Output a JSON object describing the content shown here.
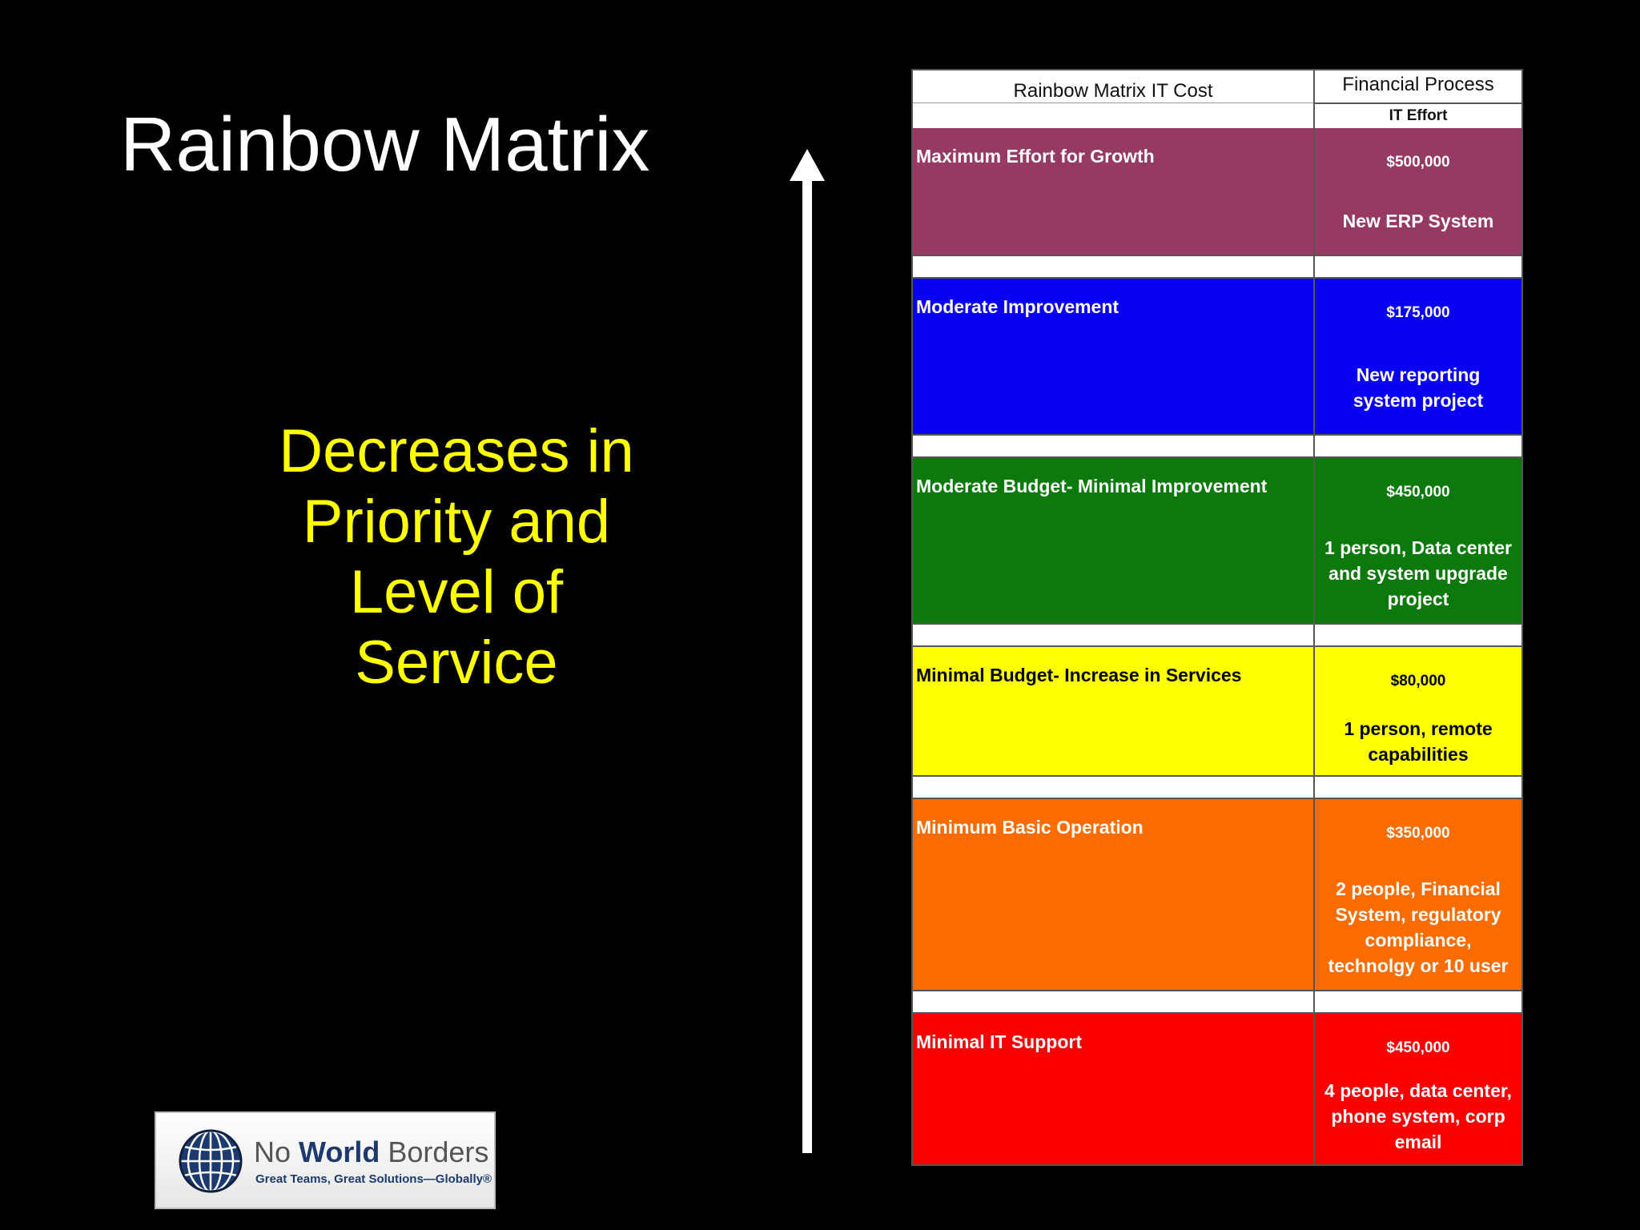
{
  "slide": {
    "title": "Rainbow Matrix",
    "caption_lines": [
      "Decreases in",
      "Priority and",
      "Level of",
      "Service"
    ]
  },
  "matrix": {
    "header": {
      "col1": "Rainbow Matrix IT Cost",
      "col2_top": "Financial Process",
      "col2_sub": "IT Effort"
    },
    "rows": [
      {
        "label": "Maximum Effort for Growth",
        "amount": "$500,000",
        "desc": [
          "New ERP System"
        ],
        "color": "#963963"
      },
      {
        "label": "Moderate Improvement",
        "amount": "$175,000",
        "desc": [
          "New reporting",
          "system project"
        ],
        "color": "#0a00f2"
      },
      {
        "label": "Moderate Budget- Minimal Improvement",
        "amount": "$450,000",
        "desc": [
          "1 person, Data center",
          "and system upgrade",
          "project"
        ],
        "color": "#0b790b"
      },
      {
        "label": "Minimal Budget- Increase in Services",
        "amount": "$80,000",
        "desc": [
          "1 person, remote",
          "capabilities"
        ],
        "color": "#ffff00"
      },
      {
        "label": "Minimum Basic Operation",
        "amount": "$350,000",
        "desc": [
          "2 people, Financial",
          "System, regulatory",
          "compliance,",
          "technolgy or 10 user"
        ],
        "color": "#fa6c00"
      },
      {
        "label": "Minimal IT Support",
        "amount": "$450,000",
        "desc": [
          "4 people, data center,",
          "phone system, corp",
          "email"
        ],
        "color": "#fa0000"
      }
    ]
  },
  "logo": {
    "name_pre": "No ",
    "name_bold": "World",
    "name_post": " Borders",
    "tagline": "Great Teams, Great Solutions—Globally®",
    "icon": "globe-icon"
  }
}
